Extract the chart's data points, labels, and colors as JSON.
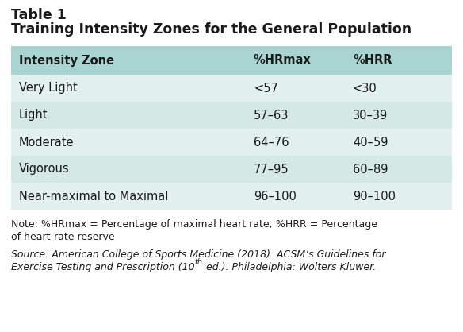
{
  "table_label": "Table 1",
  "table_title": "Training Intensity Zones for the General Population",
  "headers": [
    "Intensity Zone",
    "%HRmax",
    "%HRR"
  ],
  "rows": [
    [
      "Very Light",
      "<57",
      "<30"
    ],
    [
      "Light",
      "57–63",
      "30–39"
    ],
    [
      "Moderate",
      "64–76",
      "40–59"
    ],
    [
      "Vigorous",
      "77–95",
      "60–89"
    ],
    [
      "Near-maximal to Maximal",
      "96–100",
      "90–100"
    ]
  ],
  "header_bg": "#a8d5d1",
  "row_bg_odd": "#e2f0ef",
  "row_bg_even": "#d4e8e6",
  "note_line1": "Note: %HRmax = Percentage of maximal heart rate; %HRR = Percentage",
  "note_line2": "of heart-rate reserve",
  "source_line1": "Source: American College of Sports Medicine (2018). ACSM’s Guidelines for",
  "source_line2_plain": "Exercise Testing and Prescription (10",
  "source_line2_super": "th",
  "source_line2_end": " ed.). Philadelphia: Wolters Kluwer.",
  "background_color": "#ffffff",
  "text_color": "#1a1a1a",
  "header_fontsize": 10.5,
  "body_fontsize": 10.5,
  "note_fontsize": 9.0,
  "title_fontsize": 12.5,
  "label_fontsize": 12.5
}
